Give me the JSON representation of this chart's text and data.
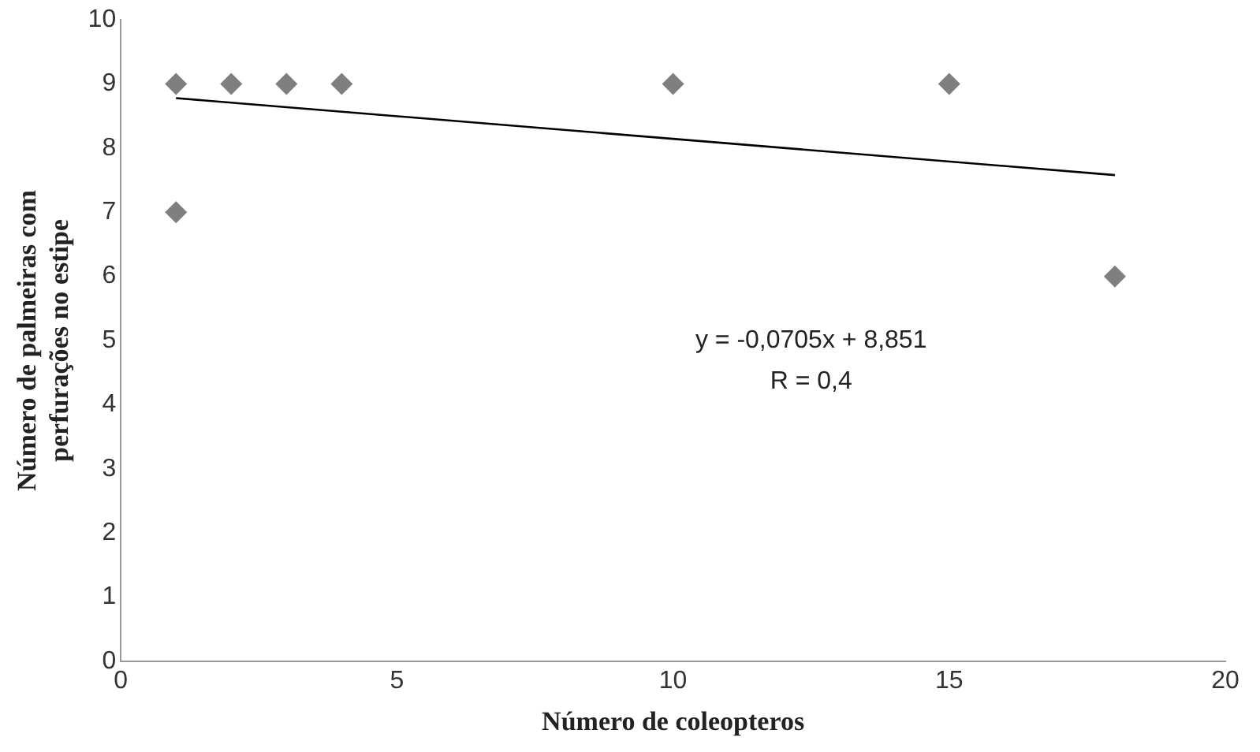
{
  "chart_data": {
    "type": "scatter",
    "xlabel": "Número de coleopteros",
    "ylabel": "Número de palmeiras com\nperfurações no estipe",
    "series": [
      {
        "type": "scatter",
        "color": "#7f7f7f",
        "marker": "diamond",
        "x": [
          1,
          1,
          2,
          3,
          4,
          10,
          15,
          18
        ],
        "values": [
          9,
          7,
          9,
          9,
          9,
          9,
          9,
          6
        ]
      },
      {
        "type": "line",
        "color": "#000000",
        "marker": "none",
        "line_style": "solid",
        "x": [
          1,
          18
        ],
        "values": [
          8.78,
          7.58
        ]
      }
    ],
    "xlim": [
      0,
      20
    ],
    "xticks": [
      0,
      5,
      10,
      15,
      20
    ],
    "ylim": [
      0,
      10
    ],
    "yticks": [
      0,
      1,
      2,
      3,
      4,
      5,
      6,
      7,
      8,
      9,
      10
    ],
    "grid": false,
    "legend": false,
    "annotations": [
      "y = -0,0705x + 8,851",
      "R = 0,4"
    ]
  }
}
